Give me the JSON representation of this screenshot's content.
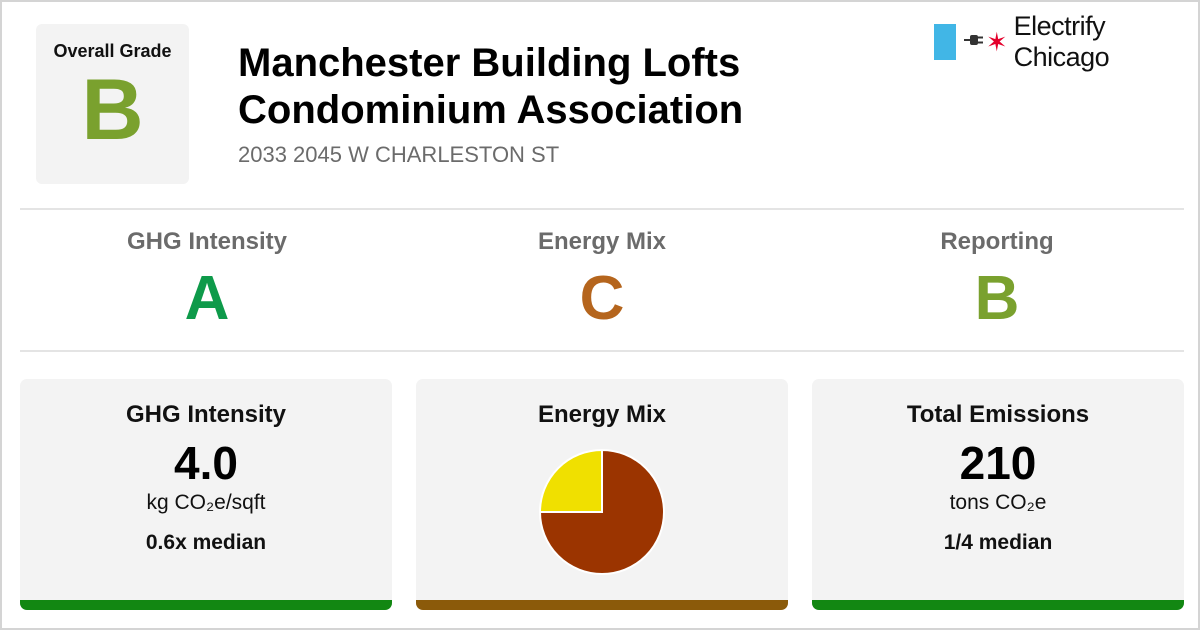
{
  "overall": {
    "label": "Overall Grade",
    "grade": "B",
    "color": "#7aa12e"
  },
  "building": {
    "name_line1": "Manchester Building Lofts",
    "name_line2": "Condominium Association",
    "address": "2033 2045 W CHARLESTON ST"
  },
  "logo": {
    "plug_icon": "plug-icon",
    "star_icon": "six-point-star-icon",
    "text": "Electrify Chicago",
    "flag_color": "#41b6e6",
    "star_color": "#e4002b"
  },
  "subgrades": [
    {
      "title": "GHG Intensity",
      "grade": "A",
      "color": "#0e9a4a"
    },
    {
      "title": "Energy Mix",
      "grade": "C",
      "color": "#b5651d"
    },
    {
      "title": "Reporting",
      "grade": "B",
      "color": "#7aa12e"
    }
  ],
  "cards": {
    "ghg": {
      "title": "GHG Intensity",
      "value": "4.0",
      "unit": "kg CO₂e/sqft",
      "median": "0.6x median",
      "bar_color": "#128712"
    },
    "mix": {
      "title": "Energy Mix",
      "bar_color": "#8b5a0a"
    },
    "emissions": {
      "title": "Total Emissions",
      "value": "210",
      "unit": "tons CO₂e",
      "median": "1/4 median",
      "bar_color": "#128712"
    }
  },
  "chart_data": {
    "type": "pie",
    "slices": [
      {
        "value": 75,
        "color": "#9b3400"
      },
      {
        "value": 25,
        "color": "#f0e000"
      }
    ]
  }
}
